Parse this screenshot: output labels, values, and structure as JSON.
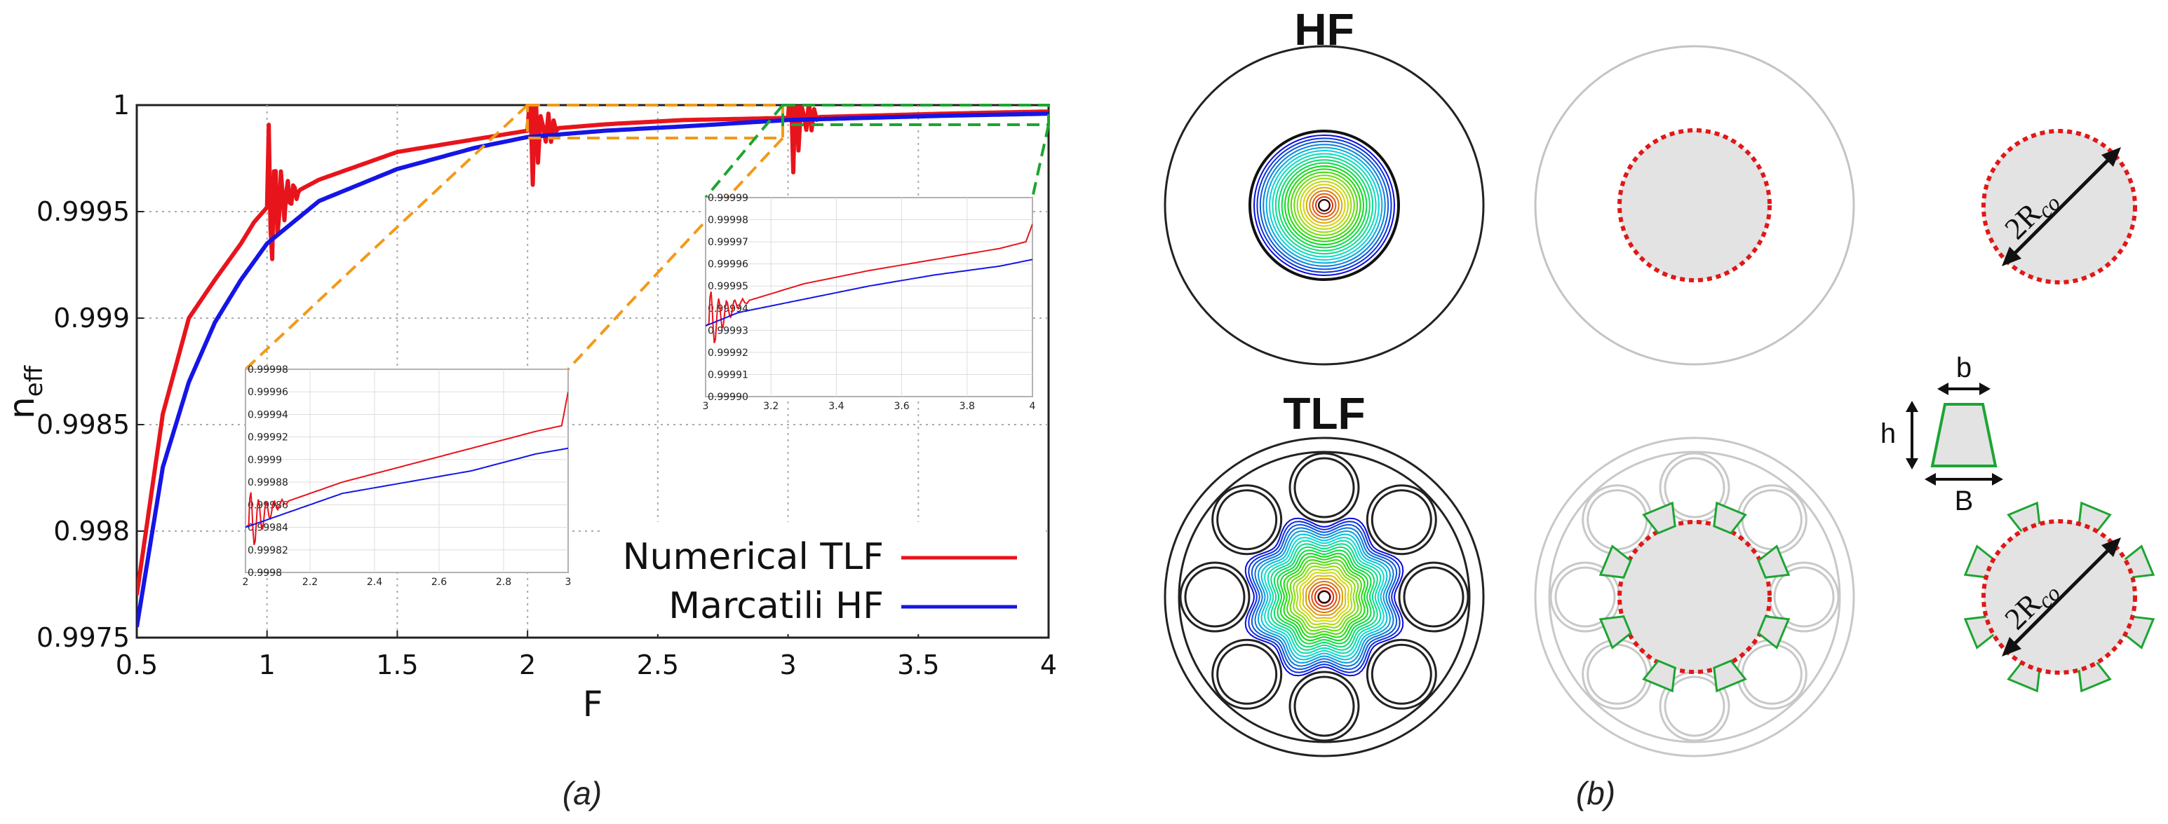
{
  "chart_data": [
    {
      "type": "line",
      "xlabel": "F",
      "ylabel": "n",
      "ylabel_sub": "eff",
      "xlim": [
        0.5,
        4
      ],
      "ylim": [
        0.9975,
        1
      ],
      "x_ticks": [
        "0.5",
        "1",
        "1.5",
        "2",
        "2.5",
        "3",
        "3.5",
        "4"
      ],
      "y_ticks": [
        "0.9975",
        "0.998",
        "0.9985",
        "0.999",
        "0.9995",
        "1"
      ],
      "grid": true,
      "legend_position": "bottom-right",
      "series": [
        {
          "name": "Numerical TLF",
          "color": "#e8141c",
          "x": [
            0.5,
            0.6,
            0.7,
            0.8,
            0.9,
            0.95,
            1.0,
            1.2,
            1.5,
            1.8,
            2.0,
            2.3,
            2.6,
            3.0,
            3.3,
            3.6,
            4.0
          ],
          "y": [
            0.9977,
            0.99855,
            0.999,
            0.99918,
            0.99935,
            0.99945,
            0.99952,
            0.99965,
            0.99978,
            0.99984,
            0.99988,
            0.99991,
            0.99993,
            0.99994,
            0.99995,
            0.99996,
            0.99997
          ],
          "oscillations_near_F": [
            1.0,
            2.0,
            3.0
          ]
        },
        {
          "name": "Marcatili HF",
          "color": "#1515e6",
          "x": [
            0.5,
            0.6,
            0.7,
            0.8,
            0.9,
            1.0,
            1.2,
            1.5,
            1.8,
            2.0,
            2.3,
            2.6,
            3.0,
            3.3,
            3.6,
            4.0
          ],
          "y": [
            0.99755,
            0.9983,
            0.9987,
            0.99898,
            0.99918,
            0.99935,
            0.99955,
            0.9997,
            0.9998,
            0.99985,
            0.99988,
            0.9999,
            0.99993,
            0.99994,
            0.99995,
            0.99996
          ]
        }
      ],
      "insets": [
        {
          "xlim": [
            2,
            3
          ],
          "ylim": [
            0.9998,
            0.99998
          ],
          "x_ticks": [
            "2",
            "2.2",
            "2.4",
            "2.6",
            "2.8",
            "3"
          ],
          "y_ticks": [
            "0.9998",
            "0.99982",
            "0.99984",
            "0.99986",
            "0.99988",
            "0.9999",
            "0.99992",
            "0.99994",
            "0.99996",
            "0.99998"
          ],
          "series": [
            {
              "name": "Numerical TLF",
              "x": [
                2.0,
                2.1,
                2.3,
                2.5,
                2.7,
                2.9,
                2.98,
                3.0
              ],
              "y": [
                0.99984,
                0.99986,
                0.99988,
                0.999895,
                0.99991,
                0.999925,
                0.99993,
                0.99996
              ]
            },
            {
              "name": "Marcatili HF",
              "x": [
                2.0,
                2.1,
                2.3,
                2.5,
                2.7,
                2.9,
                3.0
              ],
              "y": [
                0.99984,
                0.99985,
                0.99987,
                0.99988,
                0.99989,
                0.999905,
                0.99991
              ]
            }
          ]
        },
        {
          "xlim": [
            3,
            4
          ],
          "ylim": [
            0.9999,
            0.99999
          ],
          "x_ticks": [
            "3",
            "3.2",
            "3.4",
            "3.6",
            "3.8",
            "4"
          ],
          "y_ticks": [
            "0.99990",
            "0.99991",
            "0.99992",
            "0.99993",
            "0.99994",
            "0.99995",
            "0.99996",
            "0.99997",
            "0.99998",
            "0.99999"
          ],
          "series": [
            {
              "name": "Numerical TLF",
              "x": [
                3.0,
                3.1,
                3.3,
                3.5,
                3.7,
                3.9,
                3.98,
                4.0
              ],
              "y": [
                0.999932,
                0.999942,
                0.999951,
                0.999957,
                0.999962,
                0.999967,
                0.99997,
                0.999978
              ]
            },
            {
              "name": "Marcatili HF",
              "x": [
                3.0,
                3.1,
                3.3,
                3.5,
                3.7,
                3.9,
                4.0
              ],
              "y": [
                0.999932,
                0.999938,
                0.999944,
                0.99995,
                0.999955,
                0.999959,
                0.999962
              ]
            }
          ]
        }
      ]
    }
  ],
  "captions": {
    "a": "(a)",
    "b": "(b)"
  },
  "panel_b": {
    "hf_title": "HF",
    "tlf_title": "TLF",
    "r_co_base": "2R",
    "r_co_sub": "co",
    "dim_b": "b",
    "dim_h": "h",
    "dim_B": "B",
    "core_outline_color": "#e01818",
    "tube_color": "#1ca532",
    "core_fill": "#e3e3e3"
  }
}
